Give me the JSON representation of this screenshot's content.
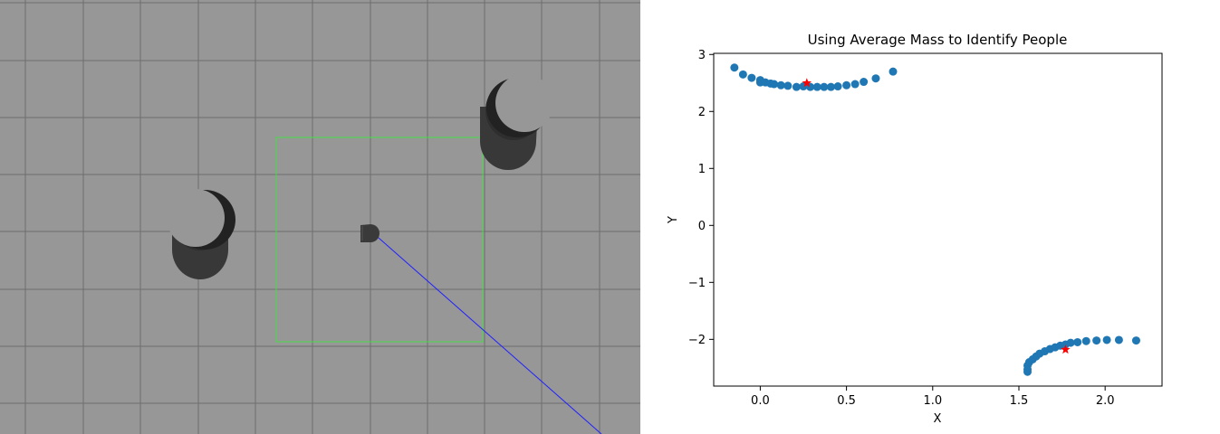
{
  "simulation": {
    "background_color": "#979797",
    "grid_color": "#6e6e6e",
    "region_color": "#44dd44",
    "scan_ray_color": "#2222ff",
    "robot_icon": "robot-base-icon",
    "person_icon": "cylinder-person-icon"
  },
  "chart_data": {
    "type": "scatter",
    "title": "Using Average Mass to Identify People",
    "xlabel": "X",
    "ylabel": "Y",
    "xlim": [
      -0.27,
      2.33
    ],
    "ylim": [
      -2.82,
      3.02
    ],
    "xticks": [
      0.0,
      0.5,
      1.0,
      1.5,
      2.0
    ],
    "xtick_labels": [
      "0.0",
      "0.5",
      "1.0",
      "1.5",
      "2.0"
    ],
    "yticks": [
      -2,
      -1,
      0,
      1,
      2,
      3
    ],
    "ytick_labels": [
      "−2",
      "−1",
      "0",
      "1",
      "2",
      "3"
    ],
    "grid": false,
    "legend": "none",
    "series": [
      {
        "color": "#1f77b4",
        "marker": "circle",
        "points": [
          [
            -0.15,
            2.77
          ],
          [
            -0.1,
            2.65
          ],
          [
            -0.05,
            2.59
          ],
          [
            0.0,
            2.55
          ],
          [
            0.0,
            2.51
          ],
          [
            0.03,
            2.51
          ],
          [
            0.06,
            2.49
          ],
          [
            0.08,
            2.48
          ],
          [
            0.12,
            2.46
          ],
          [
            0.16,
            2.45
          ],
          [
            0.21,
            2.43
          ],
          [
            0.25,
            2.44
          ],
          [
            0.29,
            2.43
          ],
          [
            0.33,
            2.43
          ],
          [
            0.37,
            2.43
          ],
          [
            0.41,
            2.43
          ],
          [
            0.45,
            2.44
          ],
          [
            0.5,
            2.46
          ],
          [
            0.55,
            2.48
          ],
          [
            0.6,
            2.52
          ],
          [
            0.67,
            2.58
          ],
          [
            0.77,
            2.7
          ],
          [
            1.55,
            -2.57
          ],
          [
            1.55,
            -2.53
          ],
          [
            1.55,
            -2.46
          ],
          [
            1.56,
            -2.4
          ],
          [
            1.58,
            -2.35
          ],
          [
            1.6,
            -2.3
          ],
          [
            1.62,
            -2.25
          ],
          [
            1.65,
            -2.21
          ],
          [
            1.68,
            -2.17
          ],
          [
            1.71,
            -2.14
          ],
          [
            1.74,
            -2.11
          ],
          [
            1.77,
            -2.09
          ],
          [
            1.8,
            -2.06
          ],
          [
            1.84,
            -2.05
          ],
          [
            1.89,
            -2.03
          ],
          [
            1.95,
            -2.02
          ],
          [
            2.01,
            -2.01
          ],
          [
            2.08,
            -2.01
          ],
          [
            2.18,
            -2.02
          ]
        ]
      },
      {
        "color": "#ff0000",
        "marker": "star",
        "points": [
          [
            0.27,
            2.5
          ],
          [
            1.77,
            -2.18
          ]
        ]
      }
    ]
  }
}
